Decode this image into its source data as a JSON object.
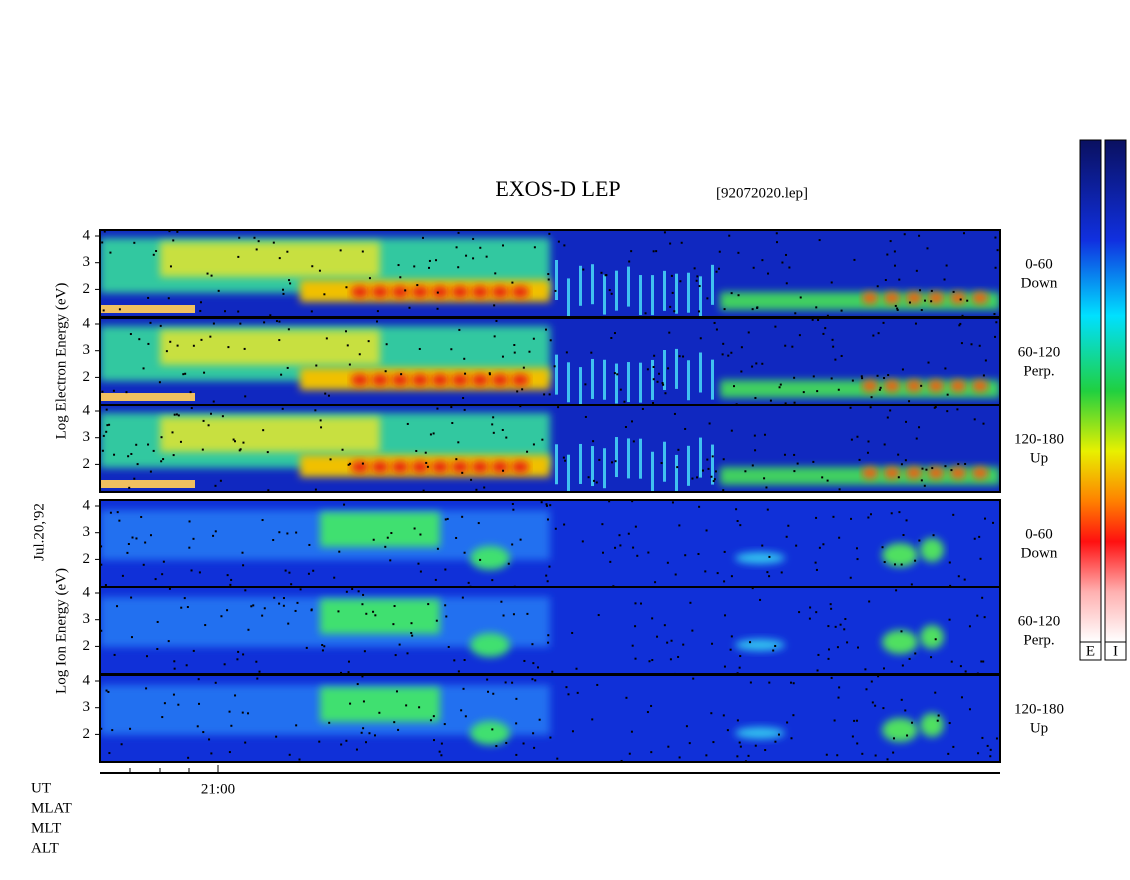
{
  "header": {
    "title": "EXOS-D LEP",
    "file": "[92072020.lep]",
    "date": "Jul.20,'92"
  },
  "groups": [
    {
      "ylabel": "Log Electron Energy (eV)",
      "panels": [
        {
          "yticks": [
            2,
            3,
            4
          ],
          "side": [
            "0-60",
            "Down"
          ]
        },
        {
          "yticks": [
            2,
            3,
            4
          ],
          "side": [
            "60-120",
            "Perp."
          ]
        },
        {
          "yticks": [
            2,
            3,
            4
          ],
          "side": [
            "120-180",
            "Up"
          ]
        }
      ]
    },
    {
      "ylabel": "Log Ion Energy (eV)",
      "panels": [
        {
          "yticks": [
            2,
            3,
            4
          ],
          "side": [
            "0-60",
            "Down"
          ]
        },
        {
          "yticks": [
            2,
            3,
            4
          ],
          "side": [
            "60-120",
            "Perp."
          ]
        },
        {
          "yticks": [
            2,
            3,
            4
          ],
          "side": [
            "120-180",
            "Up"
          ]
        }
      ]
    }
  ],
  "xaxis": {
    "tick_label": "21:00",
    "rows": [
      "UT",
      "MLAT",
      "MLT",
      "ALT"
    ]
  },
  "colorbars": [
    "E",
    "I"
  ]
}
